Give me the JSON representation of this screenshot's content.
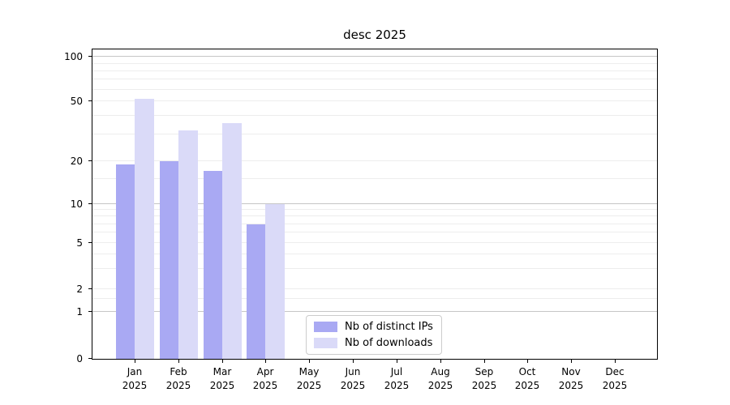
{
  "chart_data": {
    "type": "bar",
    "title": "desc 2025",
    "categories": [
      "Jan 2025",
      "Feb 2025",
      "Mar 2025",
      "Apr 2025",
      "May 2025",
      "Jun 2025",
      "Jul 2025",
      "Aug 2025",
      "Sep 2025",
      "Oct 2025",
      "Nov 2025",
      "Dec 2025"
    ],
    "series": [
      {
        "name": "Nb of distinct IPs",
        "color": "#a9a9f3",
        "values": [
          19,
          20,
          17,
          7,
          null,
          null,
          null,
          null,
          null,
          null,
          null,
          null
        ]
      },
      {
        "name": "Nb of downloads",
        "color": "#dadaf8",
        "values": [
          52,
          32,
          36,
          10,
          null,
          null,
          null,
          null,
          null,
          null,
          null,
          null
        ]
      }
    ],
    "xlabel": "",
    "ylabel": "",
    "yaxis": {
      "scale": "log-like-with-zero",
      "ticks": [
        0,
        1,
        2,
        5,
        10,
        20,
        50,
        100
      ],
      "major_gridlines": [
        1,
        10,
        100
      ],
      "minor_gridlines": [
        1.5,
        2,
        3,
        4,
        5,
        6,
        7,
        8,
        9,
        15,
        20,
        30,
        40,
        50,
        60,
        70,
        80,
        90
      ]
    },
    "grid": true,
    "legend_position": "lower-center"
  },
  "colors": {
    "bar_distinct_ips": "#a9a9f3",
    "bar_downloads": "#dadaf8",
    "major_gridline": "#c6c6c6",
    "minor_gridline": "#ededed",
    "axis": "#000000",
    "legend_border": "#cccccc",
    "background": "#ffffff"
  }
}
